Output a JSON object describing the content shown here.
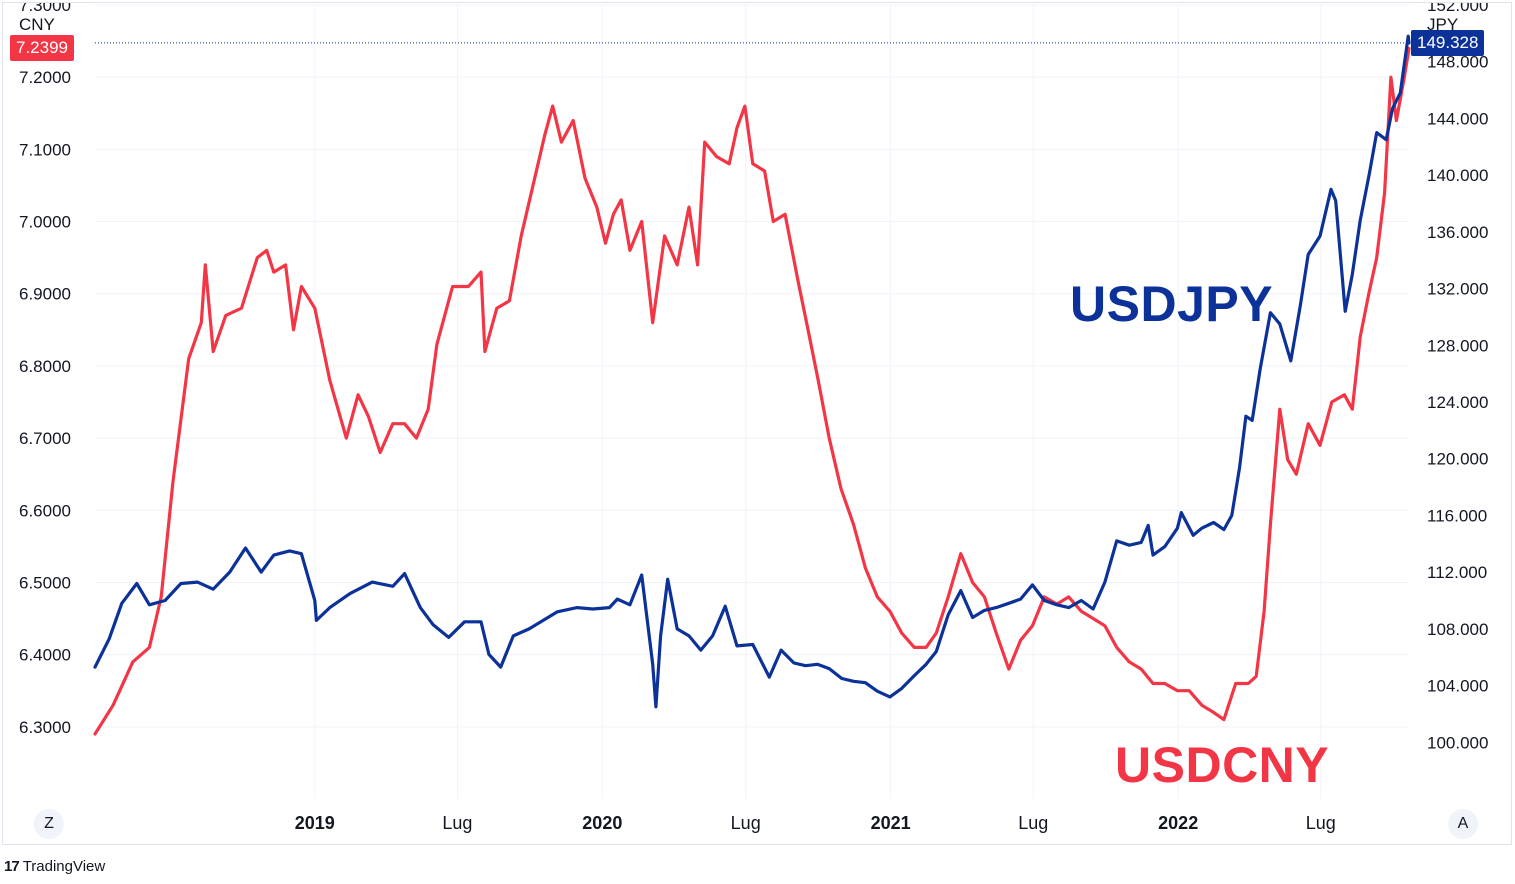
{
  "axis_units": {
    "left": "CNY",
    "right": "JPY"
  },
  "scale_buttons": {
    "left": "Z",
    "right": "A"
  },
  "price_tags": {
    "left": {
      "text": "7.2399",
      "color": "#f23645"
    },
    "right": {
      "text": "149.328",
      "color": "#0c3299"
    }
  },
  "series_labels": {
    "usdjpy": {
      "text": "USDJPY",
      "color": "#0c3299"
    },
    "usdcny": {
      "text": "USDCNY",
      "color": "#f23645"
    }
  },
  "brand": {
    "text": "TradingView",
    "logo": "17"
  },
  "chart_data": {
    "type": "line",
    "x_ticks": [
      {
        "label": "2019",
        "bold": true,
        "date": "2019-01-01"
      },
      {
        "label": "Lug",
        "bold": false,
        "date": "2019-07-01"
      },
      {
        "label": "2020",
        "bold": true,
        "date": "2020-01-01"
      },
      {
        "label": "Lug",
        "bold": false,
        "date": "2020-07-01"
      },
      {
        "label": "2021",
        "bold": true,
        "date": "2021-01-01"
      },
      {
        "label": "Lug",
        "bold": false,
        "date": "2021-07-01"
      },
      {
        "label": "2022",
        "bold": true,
        "date": "2022-01-01"
      },
      {
        "label": "Lug",
        "bold": false,
        "date": "2022-07-01"
      }
    ],
    "xlim": [
      "2018-03-28",
      "2022-10-21"
    ],
    "left_axis": {
      "unit": "CNY",
      "ylim": [
        6.2,
        7.3
      ],
      "ticks": [
        "7.3000",
        "7.2000",
        "7.1000",
        "7.0000",
        "6.9000",
        "6.8000",
        "6.7000",
        "6.6000",
        "6.5000",
        "6.4000",
        "6.3000"
      ]
    },
    "right_axis": {
      "unit": "JPY",
      "ylim": [
        96.0,
        152.0
      ],
      "ticks": [
        "152.000",
        "148.000",
        "144.000",
        "140.000",
        "136.000",
        "132.000",
        "128.000",
        "124.000",
        "120.000",
        "116.000",
        "112.000",
        "108.000",
        "104.000",
        "100.000"
      ]
    },
    "grid": true,
    "series": [
      {
        "name": "USDCNY",
        "axis": "left",
        "color": "#f23645",
        "last_value": 7.2399,
        "points": [
          [
            "2018-03-28",
            6.29
          ],
          [
            "2018-04-20",
            6.33
          ],
          [
            "2018-05-15",
            6.39
          ],
          [
            "2018-06-05",
            6.41
          ],
          [
            "2018-06-20",
            6.48
          ],
          [
            "2018-07-05",
            6.64
          ],
          [
            "2018-07-25",
            6.81
          ],
          [
            "2018-08-10",
            6.86
          ],
          [
            "2018-08-15",
            6.94
          ],
          [
            "2018-08-25",
            6.82
          ],
          [
            "2018-09-10",
            6.87
          ],
          [
            "2018-09-30",
            6.88
          ],
          [
            "2018-10-20",
            6.95
          ],
          [
            "2018-11-01",
            6.96
          ],
          [
            "2018-11-10",
            6.93
          ],
          [
            "2018-11-25",
            6.94
          ],
          [
            "2018-12-05",
            6.85
          ],
          [
            "2018-12-15",
            6.91
          ],
          [
            "2019-01-01",
            6.88
          ],
          [
            "2019-01-20",
            6.78
          ],
          [
            "2019-02-10",
            6.7
          ],
          [
            "2019-02-25",
            6.76
          ],
          [
            "2019-03-10",
            6.73
          ],
          [
            "2019-03-25",
            6.68
          ],
          [
            "2019-04-10",
            6.72
          ],
          [
            "2019-04-25",
            6.72
          ],
          [
            "2019-05-10",
            6.7
          ],
          [
            "2019-05-25",
            6.74
          ],
          [
            "2019-06-05",
            6.83
          ],
          [
            "2019-06-25",
            6.91
          ],
          [
            "2019-07-15",
            6.91
          ],
          [
            "2019-07-31",
            6.93
          ],
          [
            "2019-08-05",
            6.82
          ],
          [
            "2019-08-20",
            6.88
          ],
          [
            "2019-09-05",
            6.89
          ],
          [
            "2019-09-20",
            6.98
          ],
          [
            "2019-10-05",
            7.05
          ],
          [
            "2019-10-20",
            7.12
          ],
          [
            "2019-10-30",
            7.16
          ],
          [
            "2019-11-10",
            7.11
          ],
          [
            "2019-11-25",
            7.14
          ],
          [
            "2019-12-10",
            7.06
          ],
          [
            "2019-12-25",
            7.02
          ],
          [
            "2020-01-05",
            6.97
          ],
          [
            "2020-01-15",
            7.01
          ],
          [
            "2020-01-25",
            7.03
          ],
          [
            "2020-02-05",
            6.96
          ],
          [
            "2020-02-20",
            7.0
          ],
          [
            "2020-03-05",
            6.86
          ],
          [
            "2020-03-20",
            6.98
          ],
          [
            "2020-04-05",
            6.94
          ],
          [
            "2020-04-20",
            7.02
          ],
          [
            "2020-05-01",
            6.94
          ],
          [
            "2020-05-10",
            7.11
          ],
          [
            "2020-05-25",
            7.09
          ],
          [
            "2020-06-10",
            7.08
          ],
          [
            "2020-06-20",
            7.13
          ],
          [
            "2020-06-30",
            7.16
          ],
          [
            "2020-07-10",
            7.08
          ],
          [
            "2020-07-25",
            7.07
          ],
          [
            "2020-08-05",
            7.0
          ],
          [
            "2020-08-20",
            7.01
          ],
          [
            "2020-09-05",
            6.92
          ],
          [
            "2020-09-20",
            6.84
          ],
          [
            "2020-10-01",
            6.78
          ],
          [
            "2020-10-15",
            6.7
          ],
          [
            "2020-10-30",
            6.63
          ],
          [
            "2020-11-15",
            6.58
          ],
          [
            "2020-11-30",
            6.52
          ],
          [
            "2020-12-15",
            6.48
          ],
          [
            "2020-12-31",
            6.46
          ],
          [
            "2021-01-15",
            6.43
          ],
          [
            "2021-01-31",
            6.41
          ],
          [
            "2021-02-15",
            6.41
          ],
          [
            "2021-02-28",
            6.43
          ],
          [
            "2021-03-15",
            6.48
          ],
          [
            "2021-03-31",
            6.54
          ],
          [
            "2021-04-15",
            6.5
          ],
          [
            "2021-04-30",
            6.48
          ],
          [
            "2021-05-15",
            6.43
          ],
          [
            "2021-05-31",
            6.38
          ],
          [
            "2021-06-15",
            6.42
          ],
          [
            "2021-06-30",
            6.44
          ],
          [
            "2021-07-15",
            6.48
          ],
          [
            "2021-07-31",
            6.47
          ],
          [
            "2021-08-15",
            6.48
          ],
          [
            "2021-08-31",
            6.46
          ],
          [
            "2021-09-15",
            6.45
          ],
          [
            "2021-09-30",
            6.44
          ],
          [
            "2021-10-15",
            6.41
          ],
          [
            "2021-10-31",
            6.39
          ],
          [
            "2021-11-15",
            6.38
          ],
          [
            "2021-11-30",
            6.36
          ],
          [
            "2021-12-15",
            6.36
          ],
          [
            "2021-12-31",
            6.35
          ],
          [
            "2022-01-15",
            6.35
          ],
          [
            "2022-01-31",
            6.33
          ],
          [
            "2022-02-15",
            6.32
          ],
          [
            "2022-02-28",
            6.31
          ],
          [
            "2022-03-15",
            6.36
          ],
          [
            "2022-03-31",
            6.36
          ],
          [
            "2022-04-10",
            6.37
          ],
          [
            "2022-04-20",
            6.46
          ],
          [
            "2022-04-28",
            6.58
          ],
          [
            "2022-05-10",
            6.74
          ],
          [
            "2022-05-20",
            6.67
          ],
          [
            "2022-05-31",
            6.65
          ],
          [
            "2022-06-15",
            6.72
          ],
          [
            "2022-06-30",
            6.69
          ],
          [
            "2022-07-15",
            6.75
          ],
          [
            "2022-07-31",
            6.76
          ],
          [
            "2022-08-10",
            6.74
          ],
          [
            "2022-08-20",
            6.84
          ],
          [
            "2022-08-31",
            6.9
          ],
          [
            "2022-09-10",
            6.95
          ],
          [
            "2022-09-20",
            7.04
          ],
          [
            "2022-09-28",
            7.2
          ],
          [
            "2022-10-05",
            7.14
          ],
          [
            "2022-10-15",
            7.2
          ],
          [
            "2022-10-21",
            7.2399
          ]
        ]
      },
      {
        "name": "USDJPY",
        "axis": "right",
        "color": "#0c3299",
        "last_value": 149.328,
        "points": [
          [
            "2018-03-28",
            105.3
          ],
          [
            "2018-04-15",
            107.3
          ],
          [
            "2018-05-01",
            109.8
          ],
          [
            "2018-05-20",
            111.2
          ],
          [
            "2018-06-05",
            109.7
          ],
          [
            "2018-06-25",
            110.0
          ],
          [
            "2018-07-15",
            111.2
          ],
          [
            "2018-08-05",
            111.3
          ],
          [
            "2018-08-25",
            110.8
          ],
          [
            "2018-09-15",
            112.0
          ],
          [
            "2018-10-05",
            113.7
          ],
          [
            "2018-10-25",
            112.0
          ],
          [
            "2018-11-10",
            113.2
          ],
          [
            "2018-11-30",
            113.5
          ],
          [
            "2018-12-15",
            113.3
          ],
          [
            "2019-01-01",
            110.0
          ],
          [
            "2019-01-03",
            108.6
          ],
          [
            "2019-01-20",
            109.5
          ],
          [
            "2019-02-15",
            110.5
          ],
          [
            "2019-03-15",
            111.3
          ],
          [
            "2019-04-10",
            111.0
          ],
          [
            "2019-04-25",
            111.9
          ],
          [
            "2019-05-15",
            109.5
          ],
          [
            "2019-05-31",
            108.3
          ],
          [
            "2019-06-20",
            107.4
          ],
          [
            "2019-07-10",
            108.5
          ],
          [
            "2019-07-31",
            108.5
          ],
          [
            "2019-08-10",
            106.2
          ],
          [
            "2019-08-25",
            105.3
          ],
          [
            "2019-09-10",
            107.5
          ],
          [
            "2019-09-30",
            108.0
          ],
          [
            "2019-10-15",
            108.5
          ],
          [
            "2019-11-05",
            109.2
          ],
          [
            "2019-11-30",
            109.5
          ],
          [
            "2019-12-20",
            109.4
          ],
          [
            "2020-01-10",
            109.5
          ],
          [
            "2020-01-20",
            110.1
          ],
          [
            "2020-02-05",
            109.7
          ],
          [
            "2020-02-20",
            111.8
          ],
          [
            "2020-03-05",
            105.5
          ],
          [
            "2020-03-09",
            102.5
          ],
          [
            "2020-03-15",
            107.5
          ],
          [
            "2020-03-24",
            111.5
          ],
          [
            "2020-04-05",
            108.0
          ],
          [
            "2020-04-20",
            107.5
          ],
          [
            "2020-05-05",
            106.5
          ],
          [
            "2020-05-20",
            107.5
          ],
          [
            "2020-06-05",
            109.6
          ],
          [
            "2020-06-20",
            106.8
          ],
          [
            "2020-07-10",
            106.9
          ],
          [
            "2020-07-31",
            104.6
          ],
          [
            "2020-08-15",
            106.5
          ],
          [
            "2020-08-31",
            105.6
          ],
          [
            "2020-09-15",
            105.4
          ],
          [
            "2020-09-30",
            105.5
          ],
          [
            "2020-10-15",
            105.2
          ],
          [
            "2020-10-31",
            104.5
          ],
          [
            "2020-11-15",
            104.3
          ],
          [
            "2020-11-30",
            104.2
          ],
          [
            "2020-12-15",
            103.6
          ],
          [
            "2020-12-31",
            103.2
          ],
          [
            "2021-01-15",
            103.8
          ],
          [
            "2021-01-31",
            104.7
          ],
          [
            "2021-02-15",
            105.5
          ],
          [
            "2021-02-28",
            106.4
          ],
          [
            "2021-03-15",
            109.0
          ],
          [
            "2021-03-31",
            110.7
          ],
          [
            "2021-04-15",
            108.8
          ],
          [
            "2021-04-30",
            109.3
          ],
          [
            "2021-05-15",
            109.5
          ],
          [
            "2021-05-31",
            109.8
          ],
          [
            "2021-06-15",
            110.1
          ],
          [
            "2021-06-30",
            111.1
          ],
          [
            "2021-07-15",
            110.0
          ],
          [
            "2021-07-31",
            109.7
          ],
          [
            "2021-08-15",
            109.5
          ],
          [
            "2021-08-31",
            110.0
          ],
          [
            "2021-09-15",
            109.4
          ],
          [
            "2021-09-30",
            111.3
          ],
          [
            "2021-10-15",
            114.2
          ],
          [
            "2021-10-31",
            113.9
          ],
          [
            "2021-11-15",
            114.1
          ],
          [
            "2021-11-24",
            115.3
          ],
          [
            "2021-11-30",
            113.2
          ],
          [
            "2021-12-15",
            113.8
          ],
          [
            "2021-12-31",
            115.1
          ],
          [
            "2022-01-05",
            116.2
          ],
          [
            "2022-01-20",
            114.6
          ],
          [
            "2022-01-31",
            115.1
          ],
          [
            "2022-02-15",
            115.5
          ],
          [
            "2022-02-28",
            115.0
          ],
          [
            "2022-03-10",
            116.0
          ],
          [
            "2022-03-20",
            119.4
          ],
          [
            "2022-03-28",
            123.0
          ],
          [
            "2022-04-05",
            122.7
          ],
          [
            "2022-04-15",
            126.3
          ],
          [
            "2022-04-28",
            130.3
          ],
          [
            "2022-05-10",
            129.5
          ],
          [
            "2022-05-24",
            126.9
          ],
          [
            "2022-06-05",
            130.8
          ],
          [
            "2022-06-15",
            134.4
          ],
          [
            "2022-06-30",
            135.7
          ],
          [
            "2022-07-14",
            139.0
          ],
          [
            "2022-07-20",
            138.2
          ],
          [
            "2022-08-01",
            130.4
          ],
          [
            "2022-08-10",
            133.0
          ],
          [
            "2022-08-20",
            136.8
          ],
          [
            "2022-09-01",
            140.2
          ],
          [
            "2022-09-10",
            143.0
          ],
          [
            "2022-09-22",
            142.5
          ],
          [
            "2022-09-30",
            144.7
          ],
          [
            "2022-10-10",
            145.8
          ],
          [
            "2022-10-20",
            149.8
          ],
          [
            "2022-10-21",
            149.328
          ]
        ]
      }
    ]
  }
}
